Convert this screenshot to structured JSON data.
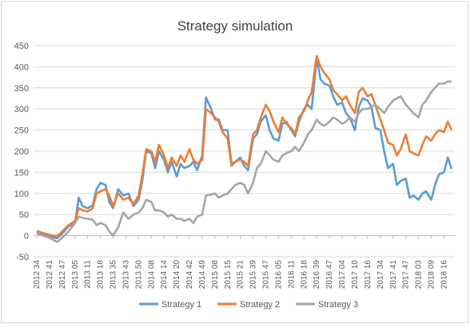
{
  "chart_data": {
    "type": "line",
    "title": "Strategy simulation",
    "xlabel": "",
    "ylabel": "",
    "ylim": [
      -50,
      450
    ],
    "yticks": [
      -50,
      0,
      50,
      100,
      150,
      200,
      250,
      300,
      350,
      400,
      450
    ],
    "grid": "horizontal",
    "legend_position": "bottom",
    "x_tick_labels": [
      "2012 34",
      "2012 41",
      "2012 47",
      "2013 05",
      "2013 11",
      "2013 18",
      "2013 35",
      "2013 43",
      "2013 50",
      "2014 08",
      "2014 14",
      "2014 20",
      "2014 42",
      "2014 49",
      "2015 08",
      "2015 15",
      "2015 21",
      "2015 39",
      "2015 47",
      "2016 05",
      "2016 11",
      "2016 18",
      "2016 39",
      "2016 47",
      "2017 04",
      "2017 10",
      "2017 16",
      "2017 34",
      "2017 41",
      "2017 47",
      "2018 03",
      "2018 09",
      "2018 16"
    ],
    "series": [
      {
        "name": "Strategy 1",
        "color": "#5b9bd5",
        "points": [
          [
            0,
            8
          ],
          [
            0.5,
            4
          ],
          [
            1,
            -2
          ],
          [
            1.3,
            -4
          ],
          [
            1.6,
            -6
          ],
          [
            2,
            5
          ],
          [
            2.5,
            22
          ],
          [
            3,
            30
          ],
          [
            3.3,
            90
          ],
          [
            3.6,
            70
          ],
          [
            4,
            65
          ],
          [
            4.4,
            72
          ],
          [
            4.7,
            110
          ],
          [
            5,
            125
          ],
          [
            5.4,
            120
          ],
          [
            5.7,
            80
          ],
          [
            6,
            65
          ],
          [
            6.4,
            110
          ],
          [
            6.8,
            95
          ],
          [
            7.2,
            100
          ],
          [
            7.6,
            70
          ],
          [
            8,
            85
          ],
          [
            8.3,
            130
          ],
          [
            8.6,
            200
          ],
          [
            9,
            195
          ],
          [
            9.3,
            160
          ],
          [
            9.6,
            200
          ],
          [
            10,
            180
          ],
          [
            10.3,
            150
          ],
          [
            10.6,
            175
          ],
          [
            11,
            140
          ],
          [
            11.3,
            170
          ],
          [
            11.6,
            160
          ],
          [
            12,
            165
          ],
          [
            12.3,
            175
          ],
          [
            12.6,
            155
          ],
          [
            13,
            190
          ],
          [
            13.3,
            327
          ],
          [
            13.7,
            300
          ],
          [
            14,
            275
          ],
          [
            14.3,
            275
          ],
          [
            14.6,
            250
          ],
          [
            15,
            250
          ],
          [
            15.3,
            170
          ],
          [
            15.6,
            175
          ],
          [
            16,
            185
          ],
          [
            16.3,
            165
          ],
          [
            16.6,
            155
          ],
          [
            17,
            230
          ],
          [
            17.3,
            240
          ],
          [
            17.6,
            270
          ],
          [
            18,
            285
          ],
          [
            18.3,
            250
          ],
          [
            18.6,
            230
          ],
          [
            19,
            225
          ],
          [
            19.3,
            265
          ],
          [
            19.6,
            270
          ],
          [
            20,
            250
          ],
          [
            20.3,
            235
          ],
          [
            20.6,
            270
          ],
          [
            21,
            300
          ],
          [
            21.3,
            310
          ],
          [
            21.6,
            300
          ],
          [
            22,
            420
          ],
          [
            22.3,
            370
          ],
          [
            22.6,
            360
          ],
          [
            23,
            355
          ],
          [
            23.3,
            330
          ],
          [
            23.6,
            310
          ],
          [
            24,
            315
          ],
          [
            24.3,
            290
          ],
          [
            24.6,
            280
          ],
          [
            25,
            250
          ],
          [
            25.3,
            305
          ],
          [
            25.6,
            325
          ],
          [
            26,
            320
          ],
          [
            26.3,
            305
          ],
          [
            26.6,
            255
          ],
          [
            27,
            250
          ],
          [
            27.3,
            200
          ],
          [
            27.6,
            160
          ],
          [
            28,
            170
          ],
          [
            28.3,
            120
          ],
          [
            28.6,
            130
          ],
          [
            29,
            135
          ],
          [
            29.3,
            90
          ],
          [
            29.6,
            95
          ],
          [
            30,
            85
          ],
          [
            30.3,
            100
          ],
          [
            30.6,
            105
          ],
          [
            31,
            85
          ],
          [
            31.3,
            120
          ],
          [
            31.6,
            145
          ],
          [
            32,
            150
          ],
          [
            32.3,
            185
          ],
          [
            32.6,
            158
          ]
        ]
      },
      {
        "name": "Strategy 2",
        "color": "#ed7d31",
        "points": [
          [
            0,
            12
          ],
          [
            0.5,
            6
          ],
          [
            1,
            2
          ],
          [
            1.3,
            0
          ],
          [
            1.6,
            -1
          ],
          [
            2,
            10
          ],
          [
            2.5,
            25
          ],
          [
            3,
            35
          ],
          [
            3.3,
            65
          ],
          [
            3.6,
            60
          ],
          [
            4,
            57
          ],
          [
            4.4,
            65
          ],
          [
            4.7,
            100
          ],
          [
            5,
            105
          ],
          [
            5.4,
            110
          ],
          [
            5.7,
            95
          ],
          [
            6,
            70
          ],
          [
            6.4,
            100
          ],
          [
            6.8,
            85
          ],
          [
            7.2,
            90
          ],
          [
            7.6,
            75
          ],
          [
            8,
            95
          ],
          [
            8.3,
            145
          ],
          [
            8.6,
            205
          ],
          [
            9,
            200
          ],
          [
            9.3,
            175
          ],
          [
            9.6,
            215
          ],
          [
            10,
            190
          ],
          [
            10.3,
            160
          ],
          [
            10.6,
            185
          ],
          [
            11,
            165
          ],
          [
            11.3,
            190
          ],
          [
            11.6,
            175
          ],
          [
            12,
            205
          ],
          [
            12.3,
            180
          ],
          [
            12.6,
            170
          ],
          [
            13,
            180
          ],
          [
            13.3,
            300
          ],
          [
            13.7,
            290
          ],
          [
            14,
            280
          ],
          [
            14.3,
            270
          ],
          [
            14.6,
            245
          ],
          [
            15,
            230
          ],
          [
            15.3,
            165
          ],
          [
            15.6,
            175
          ],
          [
            16,
            180
          ],
          [
            16.3,
            175
          ],
          [
            16.6,
            165
          ],
          [
            17,
            240
          ],
          [
            17.3,
            250
          ],
          [
            17.6,
            280
          ],
          [
            18,
            310
          ],
          [
            18.3,
            295
          ],
          [
            18.6,
            270
          ],
          [
            19,
            245
          ],
          [
            19.3,
            280
          ],
          [
            19.6,
            265
          ],
          [
            20,
            255
          ],
          [
            20.3,
            240
          ],
          [
            20.6,
            280
          ],
          [
            21,
            295
          ],
          [
            21.3,
            320
          ],
          [
            21.6,
            340
          ],
          [
            22,
            425
          ],
          [
            22.3,
            400
          ],
          [
            22.6,
            385
          ],
          [
            23,
            370
          ],
          [
            23.3,
            345
          ],
          [
            23.6,
            335
          ],
          [
            24,
            320
          ],
          [
            24.3,
            330
          ],
          [
            24.6,
            310
          ],
          [
            25,
            290
          ],
          [
            25.3,
            340
          ],
          [
            25.6,
            350
          ],
          [
            26,
            330
          ],
          [
            26.3,
            335
          ],
          [
            26.6,
            310
          ],
          [
            27,
            275
          ],
          [
            27.3,
            250
          ],
          [
            27.6,
            220
          ],
          [
            28,
            215
          ],
          [
            28.3,
            190
          ],
          [
            28.6,
            205
          ],
          [
            29,
            240
          ],
          [
            29.3,
            200
          ],
          [
            29.6,
            195
          ],
          [
            30,
            190
          ],
          [
            30.3,
            215
          ],
          [
            30.6,
            235
          ],
          [
            31,
            225
          ],
          [
            31.3,
            240
          ],
          [
            31.6,
            250
          ],
          [
            32,
            245
          ],
          [
            32.3,
            270
          ],
          [
            32.6,
            250
          ]
        ]
      },
      {
        "name": "Strategy 3",
        "color": "#a5a5a5",
        "points": [
          [
            0,
            5
          ],
          [
            0.5,
            0
          ],
          [
            1,
            -5
          ],
          [
            1.3,
            -10
          ],
          [
            1.6,
            -15
          ],
          [
            2,
            -5
          ],
          [
            2.5,
            10
          ],
          [
            3,
            30
          ],
          [
            3.3,
            45
          ],
          [
            3.6,
            42
          ],
          [
            4,
            40
          ],
          [
            4.4,
            38
          ],
          [
            4.7,
            25
          ],
          [
            5,
            30
          ],
          [
            5.4,
            25
          ],
          [
            5.7,
            10
          ],
          [
            6,
            0
          ],
          [
            6.4,
            20
          ],
          [
            6.8,
            55
          ],
          [
            7.2,
            40
          ],
          [
            7.6,
            50
          ],
          [
            8,
            55
          ],
          [
            8.3,
            65
          ],
          [
            8.6,
            85
          ],
          [
            9,
            80
          ],
          [
            9.3,
            60
          ],
          [
            9.6,
            60
          ],
          [
            10,
            55
          ],
          [
            10.3,
            45
          ],
          [
            10.6,
            50
          ],
          [
            11,
            40
          ],
          [
            11.3,
            40
          ],
          [
            11.6,
            35
          ],
          [
            12,
            40
          ],
          [
            12.3,
            30
          ],
          [
            12.6,
            45
          ],
          [
            13,
            50
          ],
          [
            13.3,
            95
          ],
          [
            13.7,
            97
          ],
          [
            14,
            100
          ],
          [
            14.3,
            90
          ],
          [
            14.6,
            95
          ],
          [
            15,
            100
          ],
          [
            15.3,
            110
          ],
          [
            15.6,
            120
          ],
          [
            16,
            125
          ],
          [
            16.3,
            120
          ],
          [
            16.6,
            100
          ],
          [
            17,
            125
          ],
          [
            17.3,
            160
          ],
          [
            17.6,
            170
          ],
          [
            18,
            200
          ],
          [
            18.3,
            190
          ],
          [
            18.6,
            180
          ],
          [
            19,
            175
          ],
          [
            19.3,
            190
          ],
          [
            19.6,
            195
          ],
          [
            20,
            200
          ],
          [
            20.3,
            210
          ],
          [
            20.6,
            200
          ],
          [
            21,
            220
          ],
          [
            21.3,
            240
          ],
          [
            21.6,
            250
          ],
          [
            22,
            275
          ],
          [
            22.3,
            265
          ],
          [
            22.6,
            260
          ],
          [
            23,
            270
          ],
          [
            23.3,
            280
          ],
          [
            23.6,
            275
          ],
          [
            24,
            265
          ],
          [
            24.3,
            270
          ],
          [
            24.6,
            280
          ],
          [
            25,
            270
          ],
          [
            25.3,
            290
          ],
          [
            25.6,
            300
          ],
          [
            26,
            300
          ],
          [
            26.3,
            305
          ],
          [
            26.6,
            310
          ],
          [
            27,
            300
          ],
          [
            27.3,
            290
          ],
          [
            27.6,
            305
          ],
          [
            28,
            320
          ],
          [
            28.3,
            325
          ],
          [
            28.6,
            330
          ],
          [
            29,
            310
          ],
          [
            29.3,
            300
          ],
          [
            29.6,
            290
          ],
          [
            30,
            280
          ],
          [
            30.3,
            310
          ],
          [
            30.6,
            320
          ],
          [
            31,
            340
          ],
          [
            31.3,
            350
          ],
          [
            31.6,
            360
          ],
          [
            32,
            360
          ],
          [
            32.3,
            365
          ],
          [
            32.6,
            365
          ]
        ]
      }
    ]
  }
}
